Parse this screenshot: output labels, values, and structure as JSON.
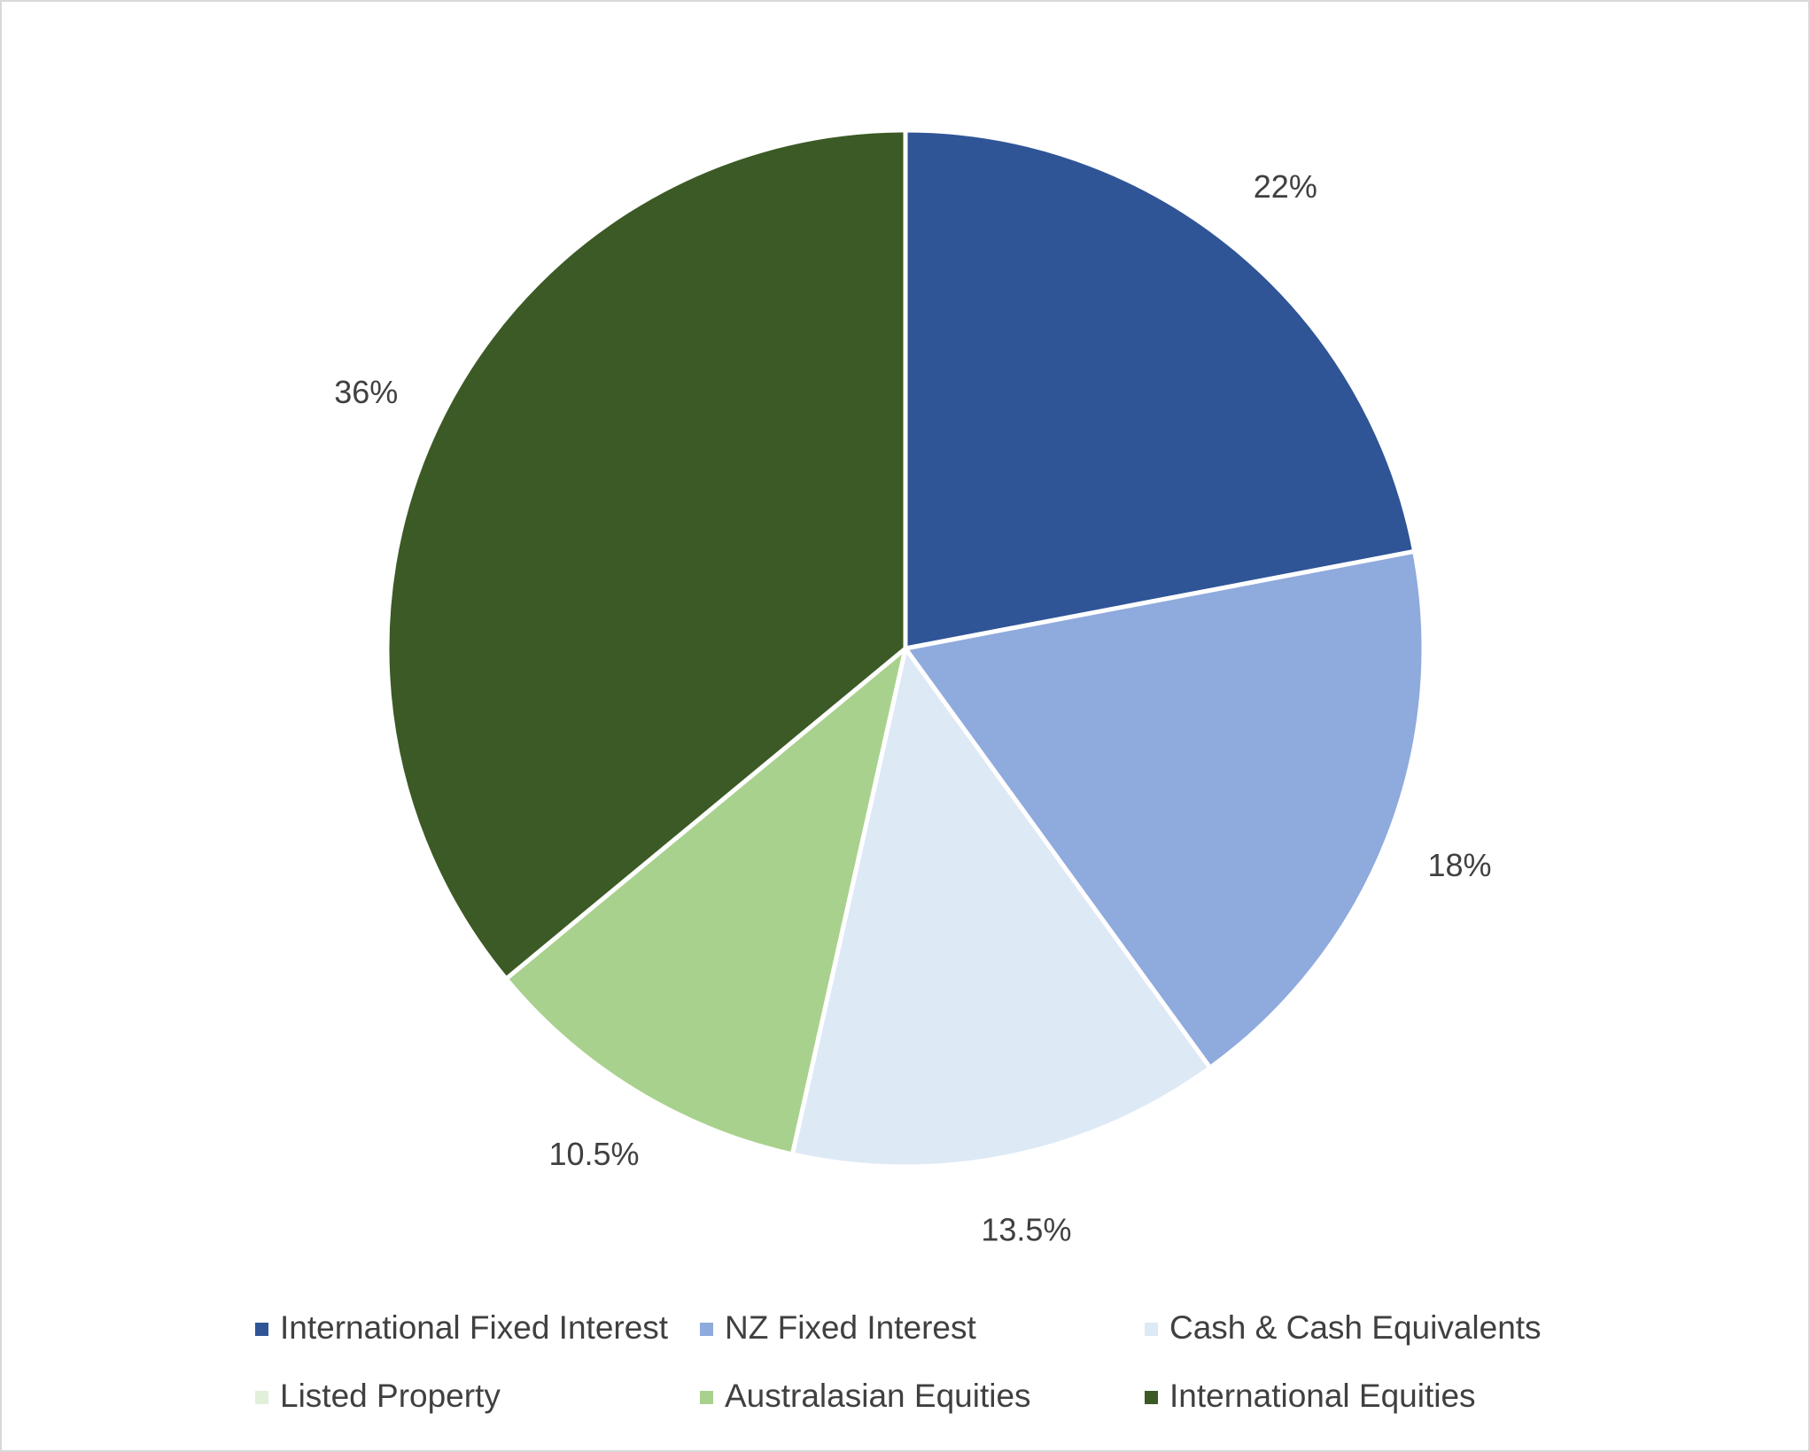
{
  "chart_data": {
    "type": "pie",
    "categories": [
      "International Fixed Interest",
      "NZ Fixed Interest",
      "Cash & Cash Equivalents",
      "Listed Property",
      "Australasian Equities",
      "International Equities"
    ],
    "values": [
      22,
      18,
      13.5,
      0,
      10.5,
      36
    ],
    "value_labels": [
      "22%",
      "18%",
      "13.5%",
      null,
      "10.5%",
      "36%"
    ],
    "colors": [
      "#2f5597",
      "#8faadc",
      "#dee9f6",
      "#e2efd9",
      "#a9d18e",
      "#3b5a25"
    ],
    "legend": "bottom"
  }
}
